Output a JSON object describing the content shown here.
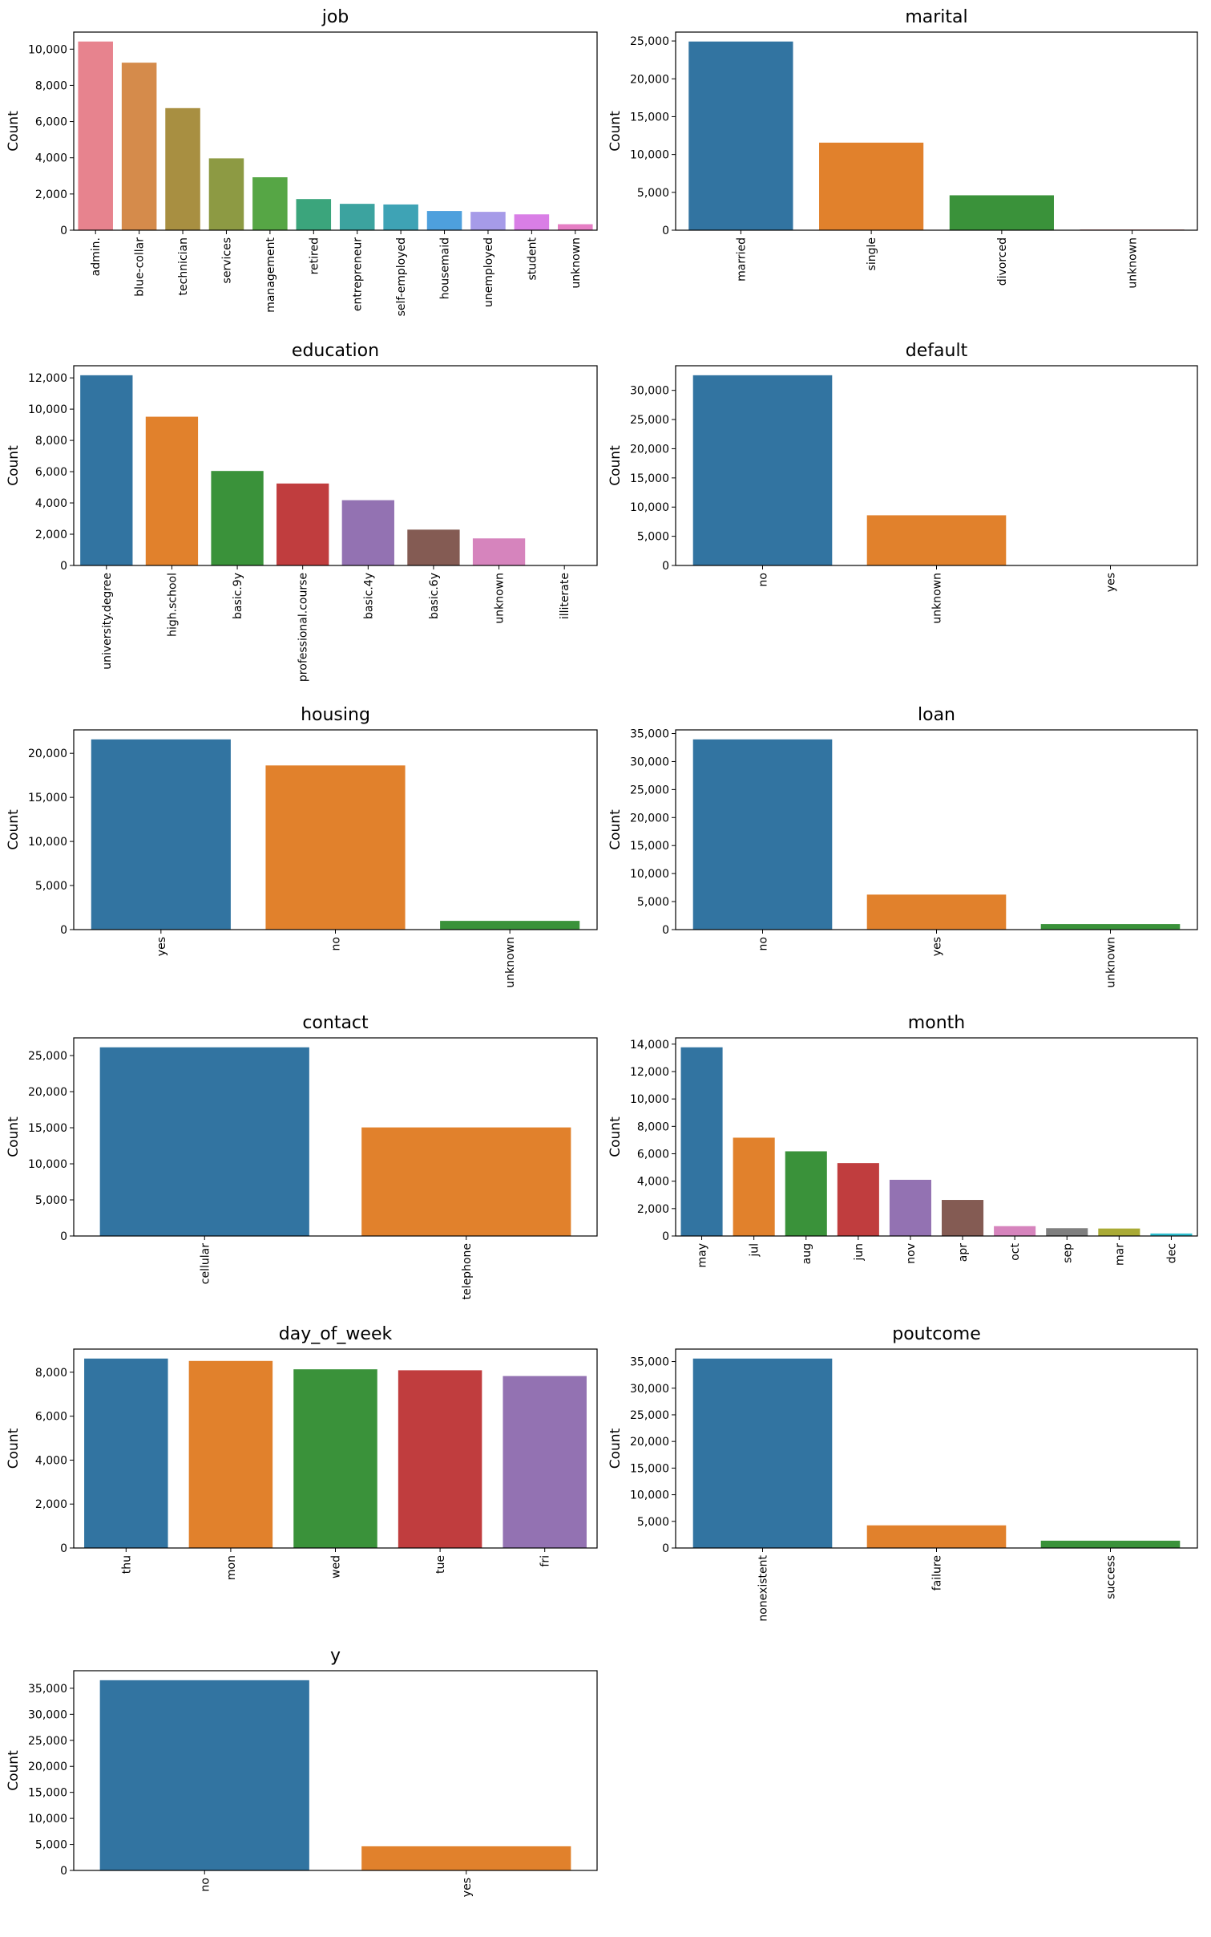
{
  "chart_data": [
    {
      "type": "bar",
      "title": "job",
      "ylabel": "Count",
      "categories": [
        "admin.",
        "blue-collar",
        "technician",
        "services",
        "management",
        "retired",
        "entrepreneur",
        "self-employed",
        "housemaid",
        "unemployed",
        "student",
        "unknown"
      ],
      "values": [
        10422,
        9254,
        6743,
        3969,
        2924,
        1720,
        1456,
        1421,
        1060,
        1014,
        875,
        330
      ],
      "colors": [
        "#e7838e",
        "#d58b4b",
        "#a88f41",
        "#8d9a43",
        "#56a645",
        "#3ba57c",
        "#3ca39f",
        "#3ea3b5",
        "#4ea0dd",
        "#a69be8",
        "#d97ee6",
        "#e57ec4"
      ],
      "ylim": [
        0,
        10943
      ],
      "yticks": [
        0,
        {
          "value": 2000,
          "label": "2,000"
        },
        {
          "value": 4000,
          "label": "4,000"
        },
        {
          "value": 6000,
          "label": "6,000"
        },
        {
          "value": 8000,
          "label": "8,000"
        },
        {
          "value": 10000,
          "label": "10,000"
        }
      ]
    },
    {
      "type": "bar",
      "title": "marital",
      "ylabel": "Count",
      "categories": [
        "married",
        "single",
        "divorced",
        "unknown"
      ],
      "values": [
        24928,
        11568,
        4612,
        80
      ],
      "colors": [
        "#3274a1",
        "#e1812c",
        "#3a923a",
        "#c03d3e"
      ],
      "ylim": [
        0,
        26174
      ],
      "yticks": [
        0,
        {
          "value": 5000,
          "label": "5,000"
        },
        {
          "value": 10000,
          "label": "10,000"
        },
        {
          "value": 15000,
          "label": "15,000"
        },
        {
          "value": 20000,
          "label": "20,000"
        },
        {
          "value": 25000,
          "label": "25,000"
        }
      ]
    },
    {
      "type": "bar",
      "title": "education",
      "ylabel": "Count",
      "categories": [
        "university.degree",
        "high.school",
        "basic.9y",
        "professional.course",
        "basic.4y",
        "basic.6y",
        "unknown",
        "illiterate"
      ],
      "values": [
        12168,
        9515,
        6045,
        5243,
        4176,
        2292,
        1731,
        18
      ],
      "colors": [
        "#3274a1",
        "#e1812c",
        "#3a923a",
        "#c03d3e",
        "#9372b2",
        "#845b53",
        "#d684bd",
        "#7f7f7f"
      ],
      "ylim": [
        0,
        12776
      ],
      "yticks": [
        0,
        {
          "value": 2000,
          "label": "2,000"
        },
        {
          "value": 4000,
          "label": "4,000"
        },
        {
          "value": 6000,
          "label": "6,000"
        },
        {
          "value": 8000,
          "label": "8,000"
        },
        {
          "value": 10000,
          "label": "10,000"
        },
        {
          "value": 12000,
          "label": "12,000"
        }
      ]
    },
    {
      "type": "bar",
      "title": "default",
      "ylabel": "Count",
      "categories": [
        "no",
        "unknown",
        "yes"
      ],
      "values": [
        32588,
        8597,
        3
      ],
      "colors": [
        "#3274a1",
        "#e1812c",
        "#3a923a"
      ],
      "ylim": [
        0,
        34217
      ],
      "yticks": [
        0,
        {
          "value": 5000,
          "label": "5,000"
        },
        {
          "value": 10000,
          "label": "10,000"
        },
        {
          "value": 15000,
          "label": "15,000"
        },
        {
          "value": 20000,
          "label": "20,000"
        },
        {
          "value": 25000,
          "label": "25,000"
        },
        {
          "value": 30000,
          "label": "30,000"
        }
      ]
    },
    {
      "type": "bar",
      "title": "housing",
      "ylabel": "Count",
      "categories": [
        "yes",
        "no",
        "unknown"
      ],
      "values": [
        21576,
        18622,
        990
      ],
      "colors": [
        "#3274a1",
        "#e1812c",
        "#3a923a"
      ],
      "ylim": [
        0,
        22655
      ],
      "yticks": [
        0,
        {
          "value": 5000,
          "label": "5,000"
        },
        {
          "value": 10000,
          "label": "10,000"
        },
        {
          "value": 15000,
          "label": "15,000"
        },
        {
          "value": 20000,
          "label": "20,000"
        }
      ]
    },
    {
      "type": "bar",
      "title": "loan",
      "ylabel": "Count",
      "categories": [
        "no",
        "yes",
        "unknown"
      ],
      "values": [
        33950,
        6248,
        990
      ],
      "colors": [
        "#3274a1",
        "#e1812c",
        "#3a923a"
      ],
      "ylim": [
        0,
        35648
      ],
      "yticks": [
        0,
        {
          "value": 5000,
          "label": "5,000"
        },
        {
          "value": 10000,
          "label": "10,000"
        },
        {
          "value": 15000,
          "label": "15,000"
        },
        {
          "value": 20000,
          "label": "20,000"
        },
        {
          "value": 25000,
          "label": "25,000"
        },
        {
          "value": 30000,
          "label": "30,000"
        },
        {
          "value": 35000,
          "label": "35,000"
        }
      ]
    },
    {
      "type": "bar",
      "title": "contact",
      "ylabel": "Count",
      "categories": [
        "cellular",
        "telephone"
      ],
      "values": [
        26144,
        15044
      ],
      "colors": [
        "#3274a1",
        "#e1812c"
      ],
      "ylim": [
        0,
        27451
      ],
      "yticks": [
        0,
        {
          "value": 5000,
          "label": "5,000"
        },
        {
          "value": 10000,
          "label": "10,000"
        },
        {
          "value": 15000,
          "label": "15,000"
        },
        {
          "value": 20000,
          "label": "20,000"
        },
        {
          "value": 25000,
          "label": "25,000"
        }
      ]
    },
    {
      "type": "bar",
      "title": "month",
      "ylabel": "Count",
      "categories": [
        "may",
        "jul",
        "aug",
        "jun",
        "nov",
        "apr",
        "oct",
        "sep",
        "mar",
        "dec"
      ],
      "values": [
        13769,
        7174,
        6178,
        5318,
        4101,
        2632,
        718,
        570,
        546,
        182
      ],
      "colors": [
        "#3274a1",
        "#e1812c",
        "#3a923a",
        "#c03d3e",
        "#9372b2",
        "#845b53",
        "#d684bd",
        "#7f7f7f",
        "#a9aa35",
        "#2ebfcf"
      ],
      "ylim": [
        0,
        14457
      ],
      "yticks": [
        0,
        {
          "value": 2000,
          "label": "2,000"
        },
        {
          "value": 4000,
          "label": "4,000"
        },
        {
          "value": 6000,
          "label": "6,000"
        },
        {
          "value": 8000,
          "label": "8,000"
        },
        {
          "value": 10000,
          "label": "10,000"
        },
        {
          "value": 12000,
          "label": "12,000"
        },
        {
          "value": 14000,
          "label": "14,000"
        }
      ]
    },
    {
      "type": "bar",
      "title": "day_of_week",
      "ylabel": "Count",
      "categories": [
        "thu",
        "mon",
        "wed",
        "tue",
        "fri"
      ],
      "values": [
        8623,
        8514,
        8134,
        8090,
        7827
      ],
      "colors": [
        "#3274a1",
        "#e1812c",
        "#3a923a",
        "#c03d3e",
        "#9372b2"
      ],
      "ylim": [
        0,
        9054
      ],
      "yticks": [
        0,
        {
          "value": 2000,
          "label": "2,000"
        },
        {
          "value": 4000,
          "label": "4,000"
        },
        {
          "value": 6000,
          "label": "6,000"
        },
        {
          "value": 8000,
          "label": "8,000"
        }
      ]
    },
    {
      "type": "bar",
      "title": "poutcome",
      "ylabel": "Count",
      "categories": [
        "nonexistent",
        "failure",
        "success"
      ],
      "values": [
        35563,
        4252,
        1373
      ],
      "colors": [
        "#3274a1",
        "#e1812c",
        "#3a923a"
      ],
      "ylim": [
        0,
        37341
      ],
      "yticks": [
        0,
        {
          "value": 5000,
          "label": "5,000"
        },
        {
          "value": 10000,
          "label": "10,000"
        },
        {
          "value": 15000,
          "label": "15,000"
        },
        {
          "value": 20000,
          "label": "20,000"
        },
        {
          "value": 25000,
          "label": "25,000"
        },
        {
          "value": 30000,
          "label": "30,000"
        },
        {
          "value": 35000,
          "label": "35,000"
        }
      ]
    },
    {
      "type": "bar",
      "title": "y",
      "ylabel": "Count",
      "categories": [
        "no",
        "yes"
      ],
      "values": [
        36548,
        4640
      ],
      "colors": [
        "#3274a1",
        "#e1812c"
      ],
      "ylim": [
        0,
        38375
      ],
      "yticks": [
        0,
        {
          "value": 5000,
          "label": "5,000"
        },
        {
          "value": 10000,
          "label": "10,000"
        },
        {
          "value": 15000,
          "label": "15,000"
        },
        {
          "value": 20000,
          "label": "20,000"
        },
        {
          "value": 25000,
          "label": "25,000"
        },
        {
          "value": 30000,
          "label": "30,000"
        },
        {
          "value": 35000,
          "label": "35,000"
        }
      ]
    }
  ]
}
